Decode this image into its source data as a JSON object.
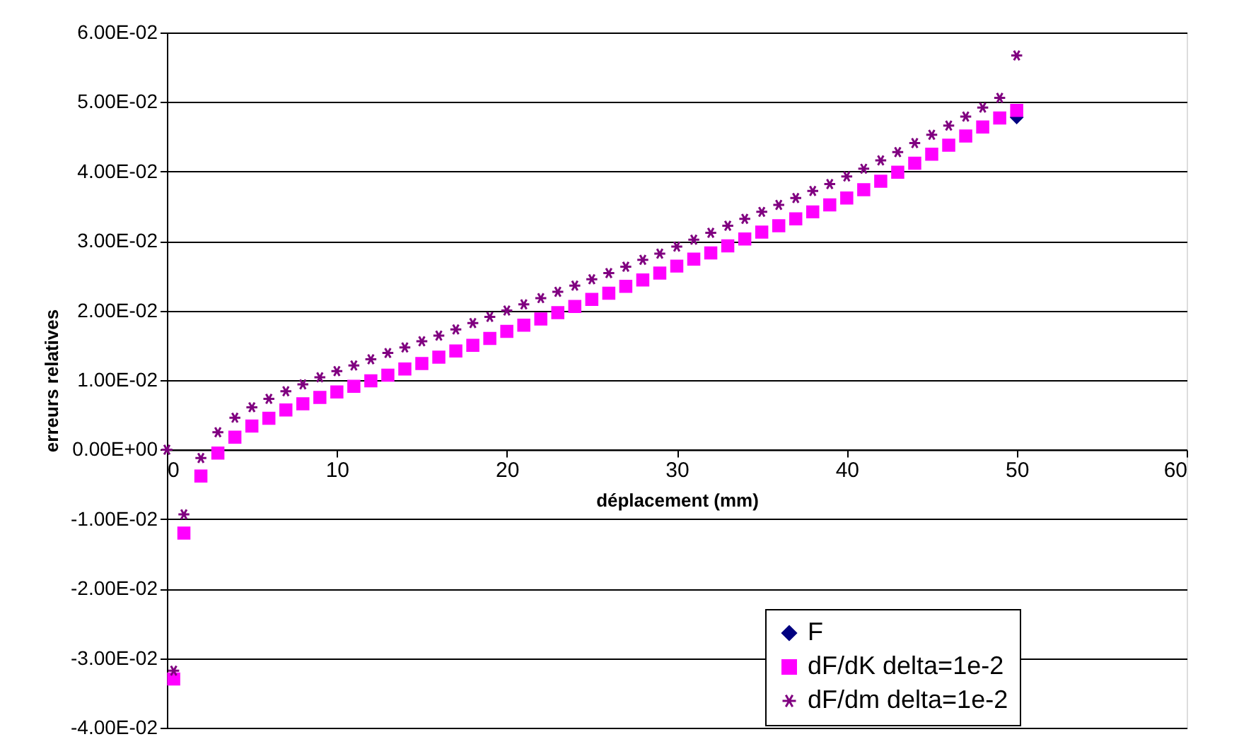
{
  "chart_data": {
    "type": "scatter",
    "xlabel": "déplacement (mm)",
    "ylabel": "erreurs relatives",
    "x": [
      0,
      0.4,
      1,
      2,
      3,
      4,
      5,
      6,
      7,
      8,
      9,
      10,
      11,
      12,
      13,
      14,
      15,
      16,
      17,
      18,
      19,
      20,
      21,
      22,
      23,
      24,
      25,
      26,
      27,
      28,
      29,
      30,
      31,
      32,
      33,
      34,
      35,
      36,
      37,
      38,
      39,
      40,
      41,
      42,
      43,
      44,
      45,
      46,
      47,
      48,
      49,
      50
    ],
    "series": [
      {
        "name": "F",
        "color": "#000080",
        "marker": "diamond",
        "values": [
          null,
          null,
          null,
          null,
          null,
          null,
          null,
          null,
          null,
          null,
          null,
          null,
          null,
          null,
          null,
          null,
          null,
          null,
          null,
          null,
          null,
          null,
          null,
          null,
          null,
          null,
          null,
          null,
          null,
          null,
          null,
          null,
          null,
          null,
          null,
          null,
          null,
          null,
          null,
          null,
          null,
          null,
          null,
          null,
          null,
          null,
          null,
          null,
          null,
          null,
          null,
          0.0478
        ]
      },
      {
        "name": "dF/dK delta=1e-2",
        "color": "#ff00ff",
        "marker": "square",
        "values": [
          null,
          -0.033,
          -0.012,
          -0.0038,
          -0.0005,
          0.0018,
          0.0034,
          0.0045,
          0.0057,
          0.0066,
          0.0075,
          0.0083,
          0.0091,
          0.0099,
          0.0107,
          0.0116,
          0.0124,
          0.0133,
          0.0142,
          0.015,
          0.016,
          0.017,
          0.0179,
          0.0188,
          0.0197,
          0.0206,
          0.0216,
          0.0225,
          0.0235,
          0.0244,
          0.0254,
          0.0264,
          0.0274,
          0.0283,
          0.0293,
          0.0303,
          0.0313,
          0.0322,
          0.0332,
          0.0342,
          0.0352,
          0.0362,
          0.0374,
          0.0386,
          0.0399,
          0.0412,
          0.0425,
          0.0438,
          0.0451,
          0.0464,
          0.0477,
          0.0488
        ]
      },
      {
        "name": "dF/dm delta=1e-2",
        "color": "#800080",
        "marker": "cross",
        "values": [
          0.0,
          -0.0318,
          -0.0093,
          -0.0012,
          0.0025,
          0.0046,
          0.0061,
          0.0073,
          0.0084,
          0.0094,
          0.0104,
          0.0113,
          0.0121,
          0.013,
          0.0139,
          0.0147,
          0.0156,
          0.0164,
          0.0173,
          0.0182,
          0.0191,
          0.02,
          0.0209,
          0.0218,
          0.0227,
          0.0236,
          0.0245,
          0.0254,
          0.0263,
          0.0273,
          0.0282,
          0.0292,
          0.0302,
          0.0312,
          0.0322,
          0.0332,
          0.0342,
          0.0352,
          0.0362,
          0.0372,
          0.0382,
          0.0393,
          0.0404,
          0.0416,
          0.0428,
          0.0441,
          0.0453,
          0.0466,
          0.0479,
          0.0492,
          0.0506,
          0.0567
        ]
      }
    ],
    "xlim": [
      0,
      60
    ],
    "xticks": [
      0,
      10,
      20,
      30,
      40,
      50,
      60
    ],
    "ylim": [
      -0.04,
      0.06
    ],
    "yticks": [
      {
        "value": -0.04,
        "label": "-4.00E-02"
      },
      {
        "value": -0.03,
        "label": "-3.00E-02"
      },
      {
        "value": -0.02,
        "label": "-2.00E-02"
      },
      {
        "value": -0.01,
        "label": "-1.00E-02"
      },
      {
        "value": 0,
        "label": "0.00E+00"
      },
      {
        "value": 0.01,
        "label": "1.00E-02"
      },
      {
        "value": 0.02,
        "label": "2.00E-02"
      },
      {
        "value": 0.03,
        "label": "3.00E-02"
      },
      {
        "value": 0.04,
        "label": "4.00E-02"
      },
      {
        "value": 0.05,
        "label": "5.00E-02"
      },
      {
        "value": 0.06,
        "label": "6.00E-02"
      }
    ],
    "grid": "y",
    "legend": "bottom right"
  }
}
